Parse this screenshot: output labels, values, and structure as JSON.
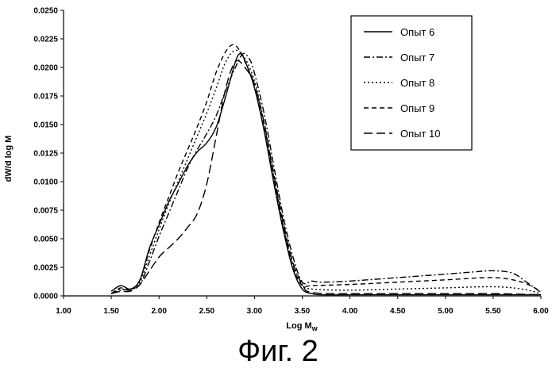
{
  "chart_data": {
    "type": "line",
    "title": "",
    "xlabel": "Log M",
    "xlabel_sub": "w",
    "ylabel": "dW/d log M",
    "xlim": [
      1.0,
      6.0
    ],
    "ylim": [
      0.0,
      0.025
    ],
    "x_ticks": [
      "1.00",
      "1.50",
      "2.00",
      "2.50",
      "3.00",
      "3.50",
      "4.00",
      "4.50",
      "5.00",
      "5.50",
      "6.00"
    ],
    "y_ticks": [
      "0.0000",
      "0.0025",
      "0.0050",
      "0.0075",
      "0.0100",
      "0.0125",
      "0.0150",
      "0.0175",
      "0.0200",
      "0.0225",
      "0.0250"
    ],
    "grid": false,
    "legend_position": "top-right",
    "series": [
      {
        "name": "Опыт 6",
        "dash": "solid",
        "x": [
          1.5,
          1.6,
          1.7,
          1.8,
          1.9,
          2.0,
          2.1,
          2.2,
          2.3,
          2.4,
          2.5,
          2.6,
          2.7,
          2.8,
          2.85,
          2.9,
          3.0,
          3.1,
          3.2,
          3.3,
          3.4,
          3.5,
          3.6,
          3.7,
          4.0,
          4.5,
          5.0,
          5.5,
          5.8,
          6.0
        ],
        "y": [
          0.0004,
          0.0009,
          0.0006,
          0.0014,
          0.0042,
          0.0062,
          0.0082,
          0.0098,
          0.0114,
          0.0126,
          0.0134,
          0.0148,
          0.0175,
          0.0205,
          0.0212,
          0.0206,
          0.0182,
          0.0145,
          0.01,
          0.0058,
          0.0024,
          0.0006,
          0.0002,
          0.0001,
          0.0001,
          0.0001,
          0.0001,
          0.0001,
          0.0001,
          0.0001
        ]
      },
      {
        "name": "Опыт 7",
        "dash": "dashdot",
        "x": [
          1.5,
          1.6,
          1.7,
          1.8,
          1.9,
          2.0,
          2.1,
          2.2,
          2.3,
          2.4,
          2.5,
          2.6,
          2.7,
          2.8,
          2.88,
          2.95,
          3.0,
          3.1,
          3.2,
          3.3,
          3.4,
          3.5,
          3.6,
          3.7,
          4.0,
          4.5,
          5.0,
          5.3,
          5.5,
          5.7,
          5.85,
          6.0
        ],
        "y": [
          0.0002,
          0.0005,
          0.0006,
          0.001,
          0.003,
          0.0052,
          0.0072,
          0.0092,
          0.0112,
          0.0128,
          0.0142,
          0.0158,
          0.018,
          0.02,
          0.0212,
          0.0207,
          0.0195,
          0.016,
          0.0115,
          0.007,
          0.0035,
          0.0012,
          0.0013,
          0.0012,
          0.0013,
          0.0016,
          0.0019,
          0.0021,
          0.0022,
          0.002,
          0.0012,
          0.0003
        ]
      },
      {
        "name": "Опыт 8",
        "dash": "dotted",
        "x": [
          1.5,
          1.6,
          1.7,
          1.8,
          1.9,
          2.0,
          2.1,
          2.2,
          2.3,
          2.4,
          2.5,
          2.6,
          2.7,
          2.8,
          2.9,
          3.0,
          3.1,
          3.2,
          3.3,
          3.4,
          3.5,
          3.6,
          4.0,
          4.5,
          5.0,
          5.5,
          5.8,
          6.0
        ],
        "y": [
          0.0002,
          0.0006,
          0.0005,
          0.0012,
          0.0035,
          0.0058,
          0.008,
          0.01,
          0.012,
          0.014,
          0.016,
          0.0182,
          0.0205,
          0.0215,
          0.0208,
          0.0188,
          0.0152,
          0.0105,
          0.0062,
          0.0028,
          0.001,
          0.0006,
          0.0005,
          0.0006,
          0.0007,
          0.0008,
          0.0006,
          0.0002
        ]
      },
      {
        "name": "Опыт 9",
        "dash": "dashed",
        "x": [
          1.5,
          1.6,
          1.7,
          1.8,
          1.9,
          2.0,
          2.1,
          2.2,
          2.3,
          2.4,
          2.5,
          2.6,
          2.7,
          2.78,
          2.85,
          2.9,
          3.0,
          3.1,
          3.2,
          3.3,
          3.4,
          3.5,
          3.6,
          4.0,
          4.5,
          5.0,
          5.5,
          5.8,
          6.0
        ],
        "y": [
          0.0002,
          0.0007,
          0.0005,
          0.0014,
          0.004,
          0.0064,
          0.0086,
          0.0108,
          0.0128,
          0.0148,
          0.017,
          0.0196,
          0.0214,
          0.022,
          0.0214,
          0.0205,
          0.0185,
          0.015,
          0.0105,
          0.0062,
          0.0026,
          0.0009,
          0.0009,
          0.001,
          0.0012,
          0.0014,
          0.0016,
          0.0012,
          0.0004
        ]
      },
      {
        "name": "Опыт 10",
        "dash": "longdash",
        "x": [
          1.5,
          1.6,
          1.7,
          1.8,
          1.9,
          2.0,
          2.1,
          2.2,
          2.3,
          2.4,
          2.5,
          2.6,
          2.7,
          2.8,
          2.9,
          3.0,
          3.1,
          3.2,
          3.3,
          3.4,
          3.5,
          3.6,
          4.0,
          4.5,
          5.0,
          5.5,
          6.0
        ],
        "y": [
          0.0002,
          0.0004,
          0.0004,
          0.001,
          0.0022,
          0.0034,
          0.0042,
          0.005,
          0.006,
          0.0072,
          0.0098,
          0.014,
          0.0182,
          0.0205,
          0.02,
          0.0185,
          0.0152,
          0.0108,
          0.0065,
          0.003,
          0.001,
          0.0003,
          0.0002,
          0.0002,
          0.0002,
          0.0002,
          0.0001
        ]
      }
    ]
  },
  "caption": "Фиг. 2"
}
